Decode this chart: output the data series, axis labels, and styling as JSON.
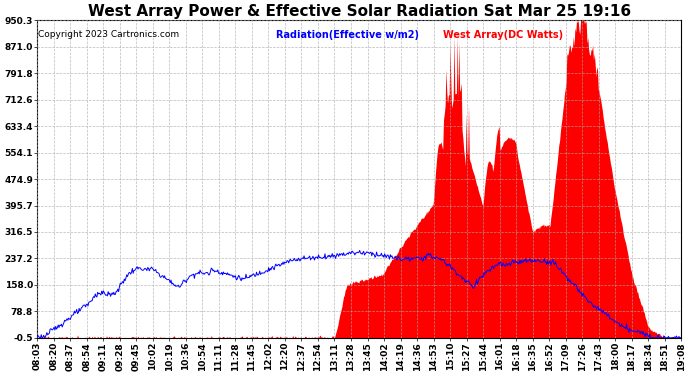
{
  "title": "West Array Power & Effective Solar Radiation Sat Mar 25 19:16",
  "copyright": "Copyright 2023 Cartronics.com",
  "legend_radiation": "Radiation(Effective w/m2)",
  "legend_west": "West Array(DC Watts)",
  "legend_radiation_color": "blue",
  "legend_west_color": "red",
  "yticks": [
    -0.5,
    78.8,
    158.0,
    237.2,
    316.5,
    395.7,
    474.9,
    554.1,
    633.4,
    712.6,
    791.8,
    871.0,
    950.3
  ],
  "ylim": [
    -0.5,
    950.3
  ],
  "background_color": "#ffffff",
  "grid_color": "#aaaaaa",
  "red_fill_color": "red",
  "blue_line_color": "blue",
  "xtick_labels": [
    "08:03",
    "08:20",
    "08:37",
    "08:54",
    "09:11",
    "09:28",
    "09:45",
    "10:02",
    "10:19",
    "10:36",
    "10:54",
    "11:11",
    "11:28",
    "11:45",
    "12:02",
    "12:20",
    "12:37",
    "12:54",
    "13:11",
    "13:28",
    "13:45",
    "14:02",
    "14:19",
    "14:36",
    "14:53",
    "15:10",
    "15:27",
    "15:44",
    "16:01",
    "16:18",
    "16:35",
    "16:52",
    "17:09",
    "17:26",
    "17:43",
    "18:00",
    "18:17",
    "18:34",
    "18:51",
    "19:08"
  ],
  "n_points": 800,
  "title_fontsize": 11,
  "tick_fontsize": 6.5,
  "copyright_fontsize": 6.5
}
